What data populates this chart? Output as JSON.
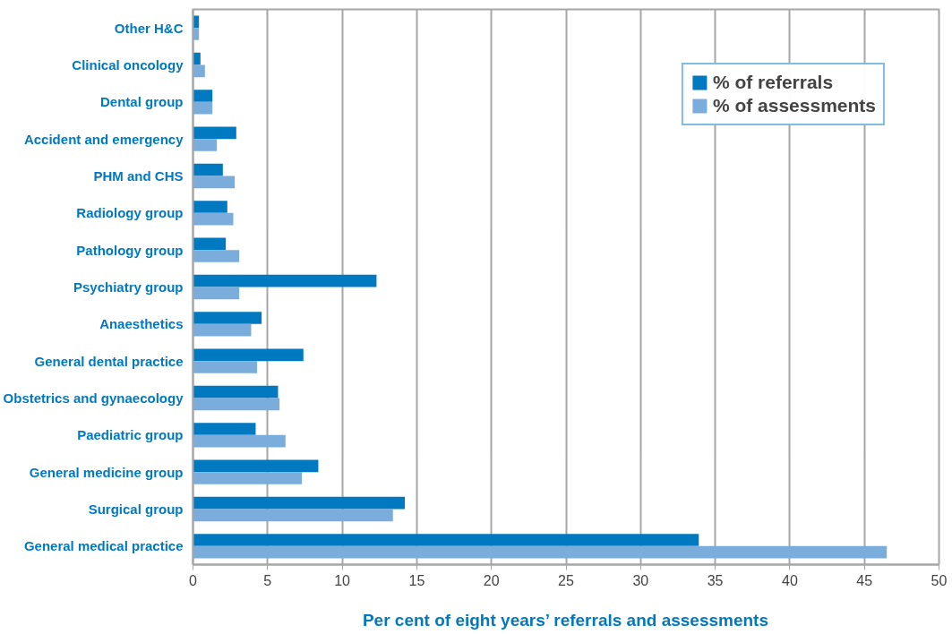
{
  "chart_data": {
    "type": "bar",
    "orientation": "horizontal",
    "xlabel": "Per cent of eight years’ referrals and assessments",
    "categories": [
      "Other H&C",
      "Clinical oncology",
      "Dental group",
      "Accident and emergency",
      "PHM and CHS",
      "Radiology group",
      "Pathology group",
      "Psychiatry group",
      "Anaesthetics",
      "General dental practice",
      "Obstetrics and gynaecology",
      "Paediatric group",
      "General medicine group",
      "Surgical group",
      "General medical practice"
    ],
    "series": [
      {
        "name": "% of referrals",
        "color": "#0079c1",
        "values": [
          0.4,
          0.5,
          1.3,
          2.9,
          2.0,
          2.3,
          2.2,
          12.3,
          4.6,
          7.4,
          5.7,
          4.2,
          8.4,
          14.2,
          33.9
        ]
      },
      {
        "name": "% of assessments",
        "color": "#7aacdc",
        "values": [
          0.4,
          0.8,
          1.3,
          1.6,
          2.8,
          2.7,
          3.1,
          3.1,
          3.9,
          4.3,
          5.8,
          6.2,
          7.3,
          13.4,
          46.5
        ]
      }
    ],
    "xlim": [
      0,
      50
    ],
    "xticks": [
      0,
      5,
      10,
      15,
      20,
      25,
      30,
      35,
      40,
      45,
      50
    ],
    "grid": "x",
    "legend": "top right"
  }
}
